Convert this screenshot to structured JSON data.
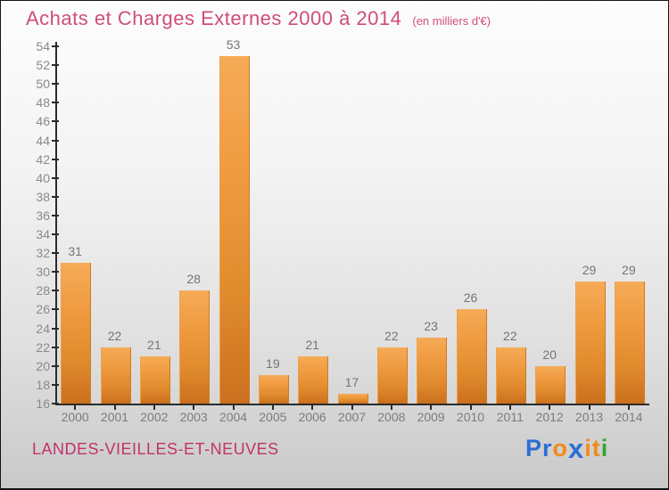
{
  "title": {
    "text": "Achats et Charges Externes 2000 à 2014",
    "subtitle": "(en milliers d'€)",
    "color": "#cf4d78"
  },
  "chart_data": {
    "type": "bar",
    "title": "Achats et Charges Externes 2000 à 2014",
    "subtitle": "(en milliers d'€)",
    "categories": [
      "2000",
      "2001",
      "2002",
      "2003",
      "2004",
      "2005",
      "2006",
      "2007",
      "2008",
      "2009",
      "2010",
      "2011",
      "2012",
      "2013",
      "2014"
    ],
    "values": [
      31,
      22,
      21,
      28,
      53,
      19,
      21,
      17,
      22,
      23,
      26,
      22,
      20,
      29,
      29
    ],
    "xlabel": "",
    "ylabel": "",
    "ylim": [
      16,
      54
    ],
    "ytick_step": 2,
    "grid": false,
    "legend_position": "none",
    "value_labels_shown": true,
    "bar_color_top": "#f6ab57",
    "bar_color_bottom": "#ca701e",
    "axis_color": "#2b2b2b",
    "tick_label_color": "#8a8a8a",
    "value_label_color": "#757575"
  },
  "footer": {
    "place_name": "LANDES-VIEILLES-ET-NEUVES",
    "place_color": "#c2326a",
    "logo": {
      "name": "Proxiti",
      "letters": [
        {
          "ch": "P",
          "color": "#2b6fd3"
        },
        {
          "ch": "r",
          "color": "#2b6fd3"
        },
        {
          "ch": "o",
          "color": "#f28a1a"
        },
        {
          "ch": "x",
          "color": "#2b6fd3"
        },
        {
          "ch": "i",
          "color": "#f28a1a"
        },
        {
          "ch": "t",
          "color": "#f28a1a"
        },
        {
          "ch": "i",
          "color": "#2fa633"
        }
      ]
    }
  }
}
